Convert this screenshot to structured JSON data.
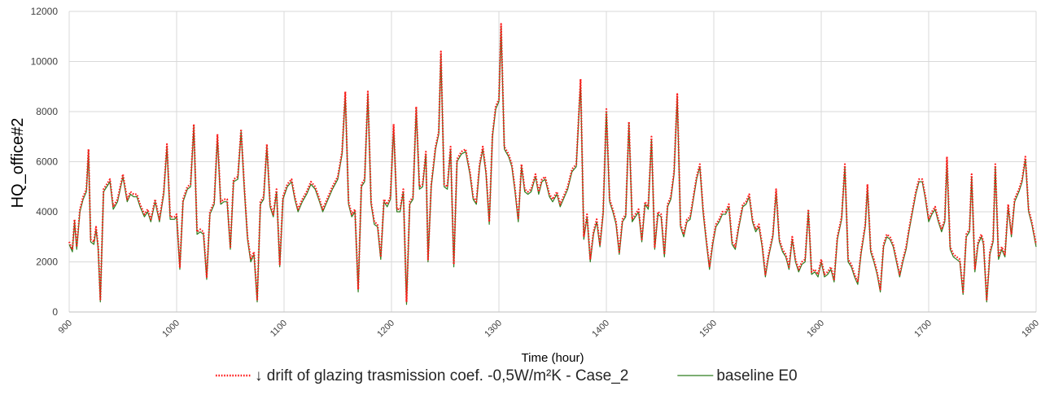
{
  "chart_data": {
    "type": "line",
    "x_label": "Time (hour)",
    "y_label": "HQ_office#2",
    "xlim": [
      900,
      1800
    ],
    "xticks": [
      900,
      1000,
      1100,
      1200,
      1300,
      1400,
      1500,
      1600,
      1700,
      1800
    ],
    "ylim": [
      0,
      12000
    ],
    "yticks": [
      0,
      2000,
      4000,
      6000,
      8000,
      10000,
      12000
    ],
    "grid": true,
    "legend": "bottom",
    "x": [
      900,
      903,
      905,
      907,
      910,
      913,
      916,
      918,
      920,
      923,
      925,
      927,
      929,
      932,
      935,
      938,
      941,
      945,
      950,
      954,
      957,
      960,
      963,
      966,
      970,
      973,
      976,
      980,
      984,
      988,
      991,
      994,
      998,
      1000,
      1003,
      1006,
      1010,
      1013,
      1016,
      1019,
      1022,
      1025,
      1028,
      1031,
      1035,
      1038,
      1041,
      1044,
      1047,
      1050,
      1053,
      1057,
      1060,
      1063,
      1066,
      1069,
      1072,
      1075,
      1078,
      1081,
      1084,
      1087,
      1090,
      1093,
      1096,
      1099,
      1103,
      1107,
      1110,
      1113,
      1117,
      1121,
      1125,
      1129,
      1133,
      1136,
      1140,
      1145,
      1150,
      1154,
      1157,
      1160,
      1163,
      1166,
      1169,
      1172,
      1175,
      1178,
      1181,
      1184,
      1187,
      1190,
      1193,
      1196,
      1199,
      1202,
      1205,
      1208,
      1211,
      1214,
      1217,
      1220,
      1223,
      1226,
      1229,
      1232,
      1234,
      1237,
      1241,
      1244,
      1246,
      1249,
      1252,
      1255,
      1258,
      1261,
      1265,
      1269,
      1273,
      1276,
      1279,
      1282,
      1285,
      1288,
      1291,
      1294,
      1297,
      1300,
      1302,
      1305,
      1309,
      1312,
      1315,
      1318,
      1321,
      1324,
      1327,
      1330,
      1334,
      1337,
      1340,
      1343,
      1347,
      1350,
      1354,
      1357,
      1360,
      1364,
      1368,
      1372,
      1376,
      1379,
      1382,
      1385,
      1388,
      1391,
      1394,
      1397,
      1400,
      1403,
      1406,
      1409,
      1412,
      1415,
      1418,
      1421,
      1424,
      1427,
      1430,
      1433,
      1436,
      1439,
      1442,
      1445,
      1448,
      1451,
      1454,
      1457,
      1460,
      1463,
      1466,
      1469,
      1472,
      1475,
      1478,
      1481,
      1484,
      1487,
      1490,
      1493,
      1496,
      1499,
      1502,
      1505,
      1508,
      1511,
      1514,
      1517,
      1520,
      1523,
      1527,
      1530,
      1533,
      1536,
      1539,
      1542,
      1545,
      1548,
      1551,
      1555,
      1558,
      1561,
      1564,
      1567,
      1570,
      1573,
      1576,
      1579,
      1582,
      1585,
      1588,
      1591,
      1594,
      1597,
      1600,
      1603,
      1606,
      1609,
      1612,
      1615,
      1619,
      1622,
      1625,
      1628,
      1631,
      1634,
      1637,
      1641,
      1643,
      1646,
      1649,
      1652,
      1655,
      1658,
      1661,
      1664,
      1667,
      1670,
      1673,
      1676,
      1679,
      1682,
      1685,
      1688,
      1691,
      1694,
      1697,
      1700,
      1703,
      1706,
      1709,
      1712,
      1715,
      1717,
      1720,
      1723,
      1726,
      1729,
      1732,
      1735,
      1738,
      1740,
      1743,
      1746,
      1749,
      1751,
      1754,
      1757,
      1760,
      1762,
      1765,
      1768,
      1771,
      1774,
      1777,
      1780,
      1784,
      1787,
      1790,
      1793,
      1796,
      1800
    ],
    "series": [
      {
        "name": "baseline E0",
        "color": "#2e7d1e",
        "dash": "solid",
        "values": [
          2700,
          2400,
          3600,
          2500,
          4000,
          4500,
          4800,
          6400,
          2800,
          2700,
          3300,
          2500,
          400,
          4800,
          5000,
          5200,
          4100,
          4400,
          5400,
          4400,
          4700,
          4600,
          4600,
          4200,
          3800,
          4000,
          3600,
          4400,
          3600,
          4700,
          6600,
          3700,
          3700,
          3800,
          1700,
          4400,
          4900,
          5000,
          7400,
          3100,
          3200,
          3100,
          1300,
          3900,
          4300,
          7000,
          4300,
          4400,
          4400,
          2500,
          5200,
          5300,
          7200,
          4900,
          2900,
          2000,
          2300,
          400,
          4300,
          4500,
          6600,
          4200,
          3800,
          4800,
          1800,
          4500,
          5000,
          5200,
          4500,
          4000,
          4400,
          4700,
          5100,
          4900,
          4400,
          4000,
          4400,
          4900,
          5300,
          6300,
          8700,
          4300,
          3800,
          4000,
          800,
          5000,
          5200,
          8700,
          4300,
          3500,
          3400,
          2100,
          4400,
          4200,
          4500,
          7400,
          4000,
          4000,
          4800,
          300,
          4300,
          4500,
          8100,
          4900,
          5000,
          6300,
          2000,
          5000,
          6500,
          7100,
          10300,
          5000,
          4900,
          6500,
          1800,
          6000,
          6300,
          6400,
          5500,
          4500,
          4300,
          5800,
          6500,
          5500,
          3500,
          7000,
          8100,
          8400,
          11400,
          6500,
          6200,
          5800,
          4800,
          3600,
          5800,
          4800,
          4700,
          4800,
          5400,
          4700,
          5200,
          5300,
          4600,
          4400,
          4700,
          4200,
          4500,
          4900,
          5600,
          5800,
          9200,
          2900,
          3800,
          2000,
          3100,
          3600,
          2600,
          3900,
          8000,
          4400,
          4000,
          3500,
          2300,
          3600,
          3800,
          7500,
          3600,
          3800,
          4000,
          2800,
          4300,
          4100,
          6900,
          2500,
          3900,
          3800,
          2200,
          4200,
          4500,
          5500,
          8600,
          3400,
          3000,
          3600,
          3700,
          4500,
          5300,
          5800,
          4000,
          2800,
          1700,
          2700,
          3400,
          3600,
          3900,
          3900,
          4200,
          2700,
          2500,
          3300,
          4200,
          4300,
          4600,
          3600,
          3200,
          3400,
          2600,
          1400,
          2200,
          3000,
          4800,
          2800,
          2400,
          2200,
          1700,
          2900,
          2000,
          1600,
          1900,
          2000,
          4000,
          1500,
          1600,
          1400,
          2000,
          1400,
          1500,
          1700,
          1200,
          2900,
          3700,
          5800,
          2000,
          1800,
          1400,
          1100,
          2300,
          3400,
          5000,
          2400,
          2000,
          1500,
          800,
          2600,
          3000,
          2900,
          2600,
          2000,
          1400,
          2000,
          2500,
          3300,
          4000,
          4700,
          5200,
          5200,
          4500,
          3600,
          3900,
          4100,
          3600,
          3200,
          3600,
          6000,
          2500,
          2200,
          2100,
          2000,
          700,
          3000,
          3200,
          5400,
          1600,
          2700,
          3000,
          2700,
          400,
          2300,
          2800,
          5800,
          2100,
          2500,
          2200,
          4200,
          3000,
          4400,
          4800,
          5200,
          6100,
          4000,
          3500,
          2600
        ]
      },
      {
        "name": "↓ drift of glazing trasmission coef. -0,5W/m²K - Case_2",
        "color": "#ff1a1a",
        "dash": "dotted",
        "values": [
          2800,
          2500,
          3700,
          2600,
          4100,
          4600,
          4900,
          6500,
          2900,
          2800,
          3400,
          2600,
          500,
          4900,
          5100,
          5300,
          4200,
          4500,
          5500,
          4500,
          4800,
          4700,
          4700,
          4300,
          3900,
          4100,
          3700,
          4500,
          3700,
          4800,
          6700,
          3800,
          3800,
          3900,
          1800,
          4500,
          5000,
          5100,
          7500,
          3200,
          3300,
          3200,
          1400,
          4000,
          4400,
          7100,
          4400,
          4500,
          4500,
          2600,
          5300,
          5400,
          7300,
          5000,
          3000,
          2100,
          2400,
          500,
          4400,
          4600,
          6700,
          4300,
          3900,
          4900,
          1900,
          4600,
          5100,
          5300,
          4600,
          4100,
          4500,
          4800,
          5200,
          5000,
          4500,
          4100,
          4500,
          5000,
          5400,
          6400,
          8800,
          4400,
          3900,
          4100,
          900,
          5100,
          5300,
          8800,
          4400,
          3600,
          3500,
          2200,
          4500,
          4300,
          4600,
          7500,
          4100,
          4100,
          4900,
          400,
          4400,
          4600,
          8200,
          5000,
          5100,
          6400,
          2100,
          5100,
          6600,
          7200,
          10400,
          5100,
          5000,
          6600,
          1900,
          6100,
          6400,
          6500,
          5600,
          4600,
          4400,
          5900,
          6600,
          5600,
          3600,
          7100,
          8200,
          8500,
          11500,
          6600,
          6300,
          5900,
          4900,
          3700,
          5900,
          4900,
          4800,
          4900,
          5500,
          4800,
          5300,
          5400,
          4700,
          4500,
          4800,
          4300,
          4600,
          5000,
          5700,
          5900,
          9300,
          3000,
          3900,
          2100,
          3200,
          3700,
          2700,
          4000,
          8100,
          4500,
          4100,
          3600,
          2400,
          3700,
          3900,
          7600,
          3700,
          3900,
          4100,
          2900,
          4400,
          4200,
          7000,
          2600,
          4000,
          3900,
          2300,
          4300,
          4600,
          5600,
          8700,
          3500,
          3100,
          3700,
          3800,
          4600,
          5400,
          5900,
          4100,
          2900,
          1800,
          2800,
          3500,
          3700,
          4000,
          4000,
          4300,
          2800,
          2600,
          3400,
          4300,
          4400,
          4700,
          3700,
          3300,
          3500,
          2700,
          1500,
          2300,
          3100,
          4900,
          2900,
          2500,
          2300,
          1800,
          3000,
          2100,
          1700,
          2000,
          2100,
          4100,
          1600,
          1700,
          1500,
          2100,
          1500,
          1600,
          1800,
          1300,
          3000,
          3800,
          5900,
          2100,
          1900,
          1500,
          1200,
          2400,
          3500,
          5100,
          2500,
          2100,
          1600,
          900,
          2700,
          3100,
          3000,
          2700,
          2100,
          1500,
          2100,
          2600,
          3400,
          4100,
          4800,
          5300,
          5300,
          4600,
          3700,
          4000,
          4200,
          3700,
          3300,
          3700,
          6200,
          2600,
          2300,
          2200,
          2100,
          800,
          3100,
          3300,
          5500,
          1700,
          2800,
          3100,
          2800,
          500,
          2400,
          2900,
          5900,
          2200,
          2600,
          2300,
          4300,
          3100,
          4500,
          4900,
          5300,
          6200,
          4100,
          3600,
          2700
        ]
      }
    ]
  }
}
